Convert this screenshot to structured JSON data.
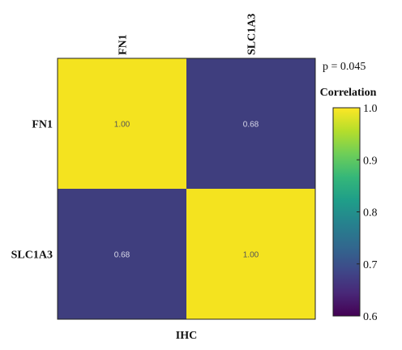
{
  "chart_data": {
    "type": "heatmap",
    "x_categories": [
      "FN1",
      "SLC1A3"
    ],
    "y_categories": [
      "FN1",
      "SLC1A3"
    ],
    "values": [
      [
        1.0,
        0.68
      ],
      [
        0.68,
        1.0
      ]
    ],
    "cell_labels": [
      [
        "1.00",
        "0.68"
      ],
      [
        "0.68",
        "1.00"
      ]
    ],
    "xlabel": "IHC",
    "annotation": "p = 0.045",
    "colorbar": {
      "title": "Correlation",
      "range": [
        0.6,
        1.0
      ],
      "ticks": [
        "1.0",
        "0.9",
        "0.8",
        "0.7",
        "0.6"
      ],
      "tick_values": [
        1.0,
        0.9,
        0.8,
        0.7,
        0.6
      ],
      "colormap": "viridis",
      "stops": [
        "#440154",
        "#482878",
        "#3e4989",
        "#31688e",
        "#26828e",
        "#1f9e89",
        "#35b779",
        "#6ece58",
        "#b5de2b",
        "#fde725"
      ]
    },
    "colors": {
      "low": "#3f3e7e",
      "high": "#f4e31f",
      "cell_text_on_high": "#555555",
      "cell_text_on_low": "#d8d8e8"
    }
  }
}
